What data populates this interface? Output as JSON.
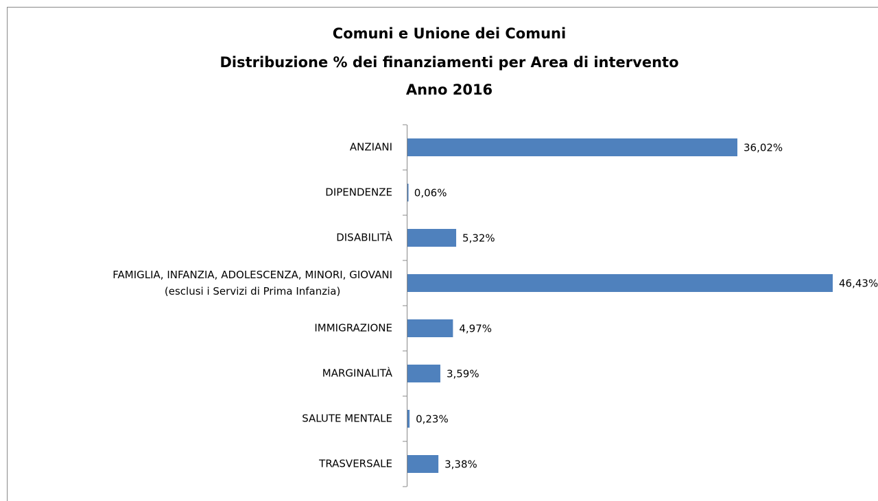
{
  "chart_data": {
    "type": "bar",
    "orientation": "horizontal",
    "title": [
      "Comuni e Unione dei Comuni",
      "Distribuzione % dei finanziamenti per Area di intervento",
      "Anno 2016"
    ],
    "categories": [
      "ANZIANI",
      "DIPENDENZE",
      "DISABILITÀ",
      "FAMIGLIA, INFANZIA, ADOLESCENZA, MINORI, GIOVANI\n(esclusi i Servizi di Prima Infanzia)",
      "IMMIGRAZIONE",
      "MARGINALITÀ",
      "SALUTE MENTALE",
      "TRASVERSALE"
    ],
    "values": [
      36.02,
      0.06,
      5.32,
      46.43,
      4.97,
      3.59,
      0.23,
      3.38
    ],
    "value_labels": [
      "36,02%",
      "0,06%",
      "5,32%",
      "46,43%",
      "4,97%",
      "3,59%",
      "0,23%",
      "3,38%"
    ],
    "color": "#4f81bd"
  }
}
